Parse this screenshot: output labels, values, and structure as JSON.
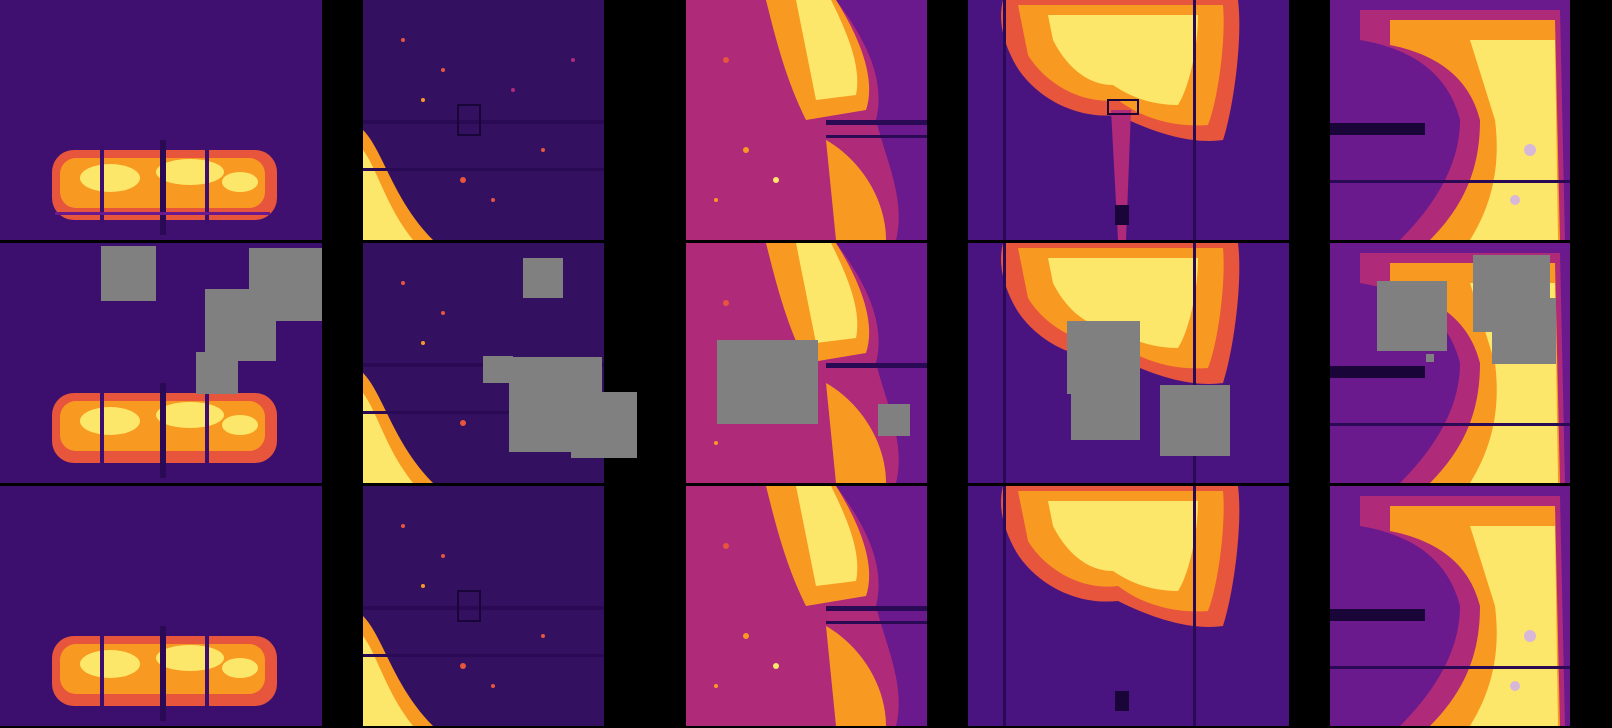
{
  "figure": {
    "image_columns": 5,
    "image_rows": [
      "original",
      "masked",
      "reconstructed"
    ],
    "colormap": [
      "#1a0538",
      "#3c0e6e",
      "#6a1a8c",
      "#b02a7a",
      "#e6553c",
      "#f89a22",
      "#fce76a",
      "#fffbe0"
    ],
    "mask_color": "#808080",
    "background_color": "#000000"
  },
  "columns": [
    {
      "scene": "bottom-strip"
    },
    {
      "scene": "left-arc"
    },
    {
      "scene": "left-half"
    },
    {
      "scene": "top-blob"
    },
    {
      "scene": "right-half"
    }
  ]
}
